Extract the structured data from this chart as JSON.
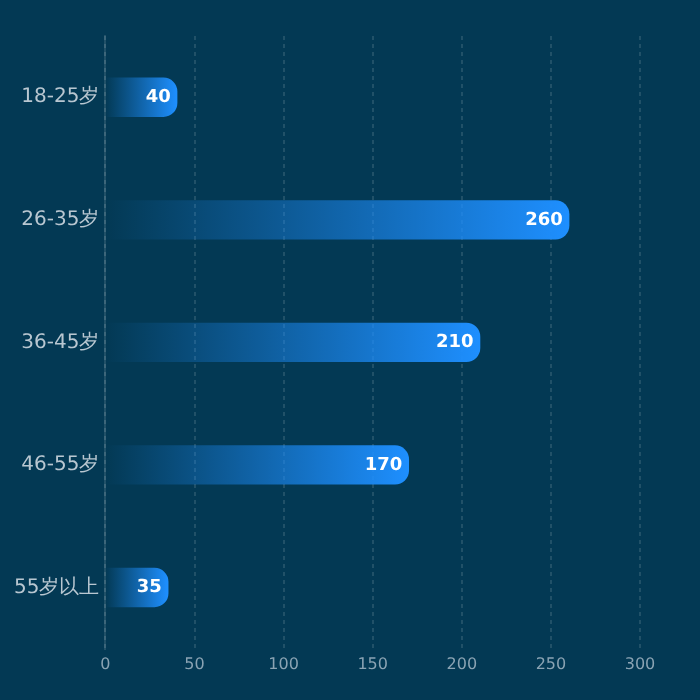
{
  "chart_data": {
    "type": "bar",
    "orientation": "horizontal",
    "categories": [
      "18-25岁",
      "26-35岁",
      "36-45岁",
      "46-55岁",
      "55岁以上"
    ],
    "values": [
      40,
      260,
      210,
      170,
      35
    ],
    "color": "#1e8fff",
    "xlim": [
      0,
      300
    ],
    "xticks": [
      0,
      50,
      100,
      150,
      200,
      250,
      300
    ],
    "grid": "x",
    "data_labels": true,
    "legend": false
  }
}
